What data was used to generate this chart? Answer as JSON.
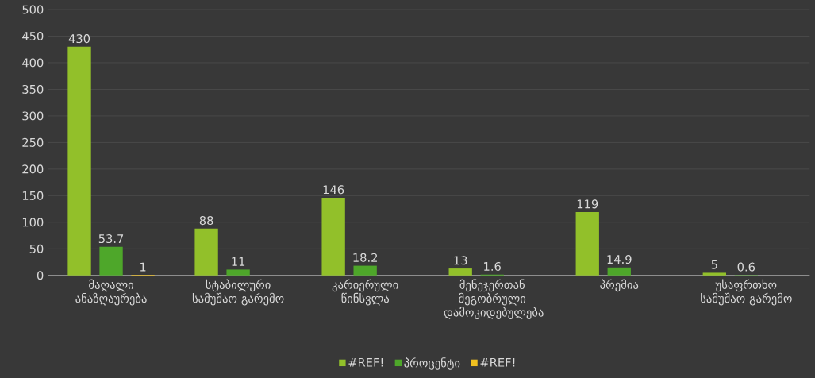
{
  "chart_data": {
    "type": "bar",
    "categories": [
      "მაღალი ანაზღაურება",
      "სტაბილური სამუშაო გარემო",
      "კარიერული წინსვლა",
      "მენეჯერთან მეგობრული დამოკიდებულება",
      "პრემია",
      "უსაფრთხო სამუშაო გარემო"
    ],
    "series": [
      {
        "name": "#REF!",
        "color": "#92c02a",
        "values": [
          430,
          88,
          146,
          13,
          119,
          5
        ]
      },
      {
        "name": "პროცენტი",
        "color": "#4ea72a",
        "values": [
          53.7,
          11,
          18.2,
          1.6,
          14.9,
          0.6
        ]
      },
      {
        "name": "#REF!",
        "color": "#f0c020",
        "values": [
          1,
          null,
          null,
          null,
          null,
          null
        ]
      }
    ],
    "ylim": [
      0,
      500
    ],
    "yticks": [
      0,
      50,
      100,
      150,
      200,
      250,
      300,
      350,
      400,
      450,
      500
    ],
    "grid": "y",
    "legend": "bottom",
    "data_labels": true
  }
}
